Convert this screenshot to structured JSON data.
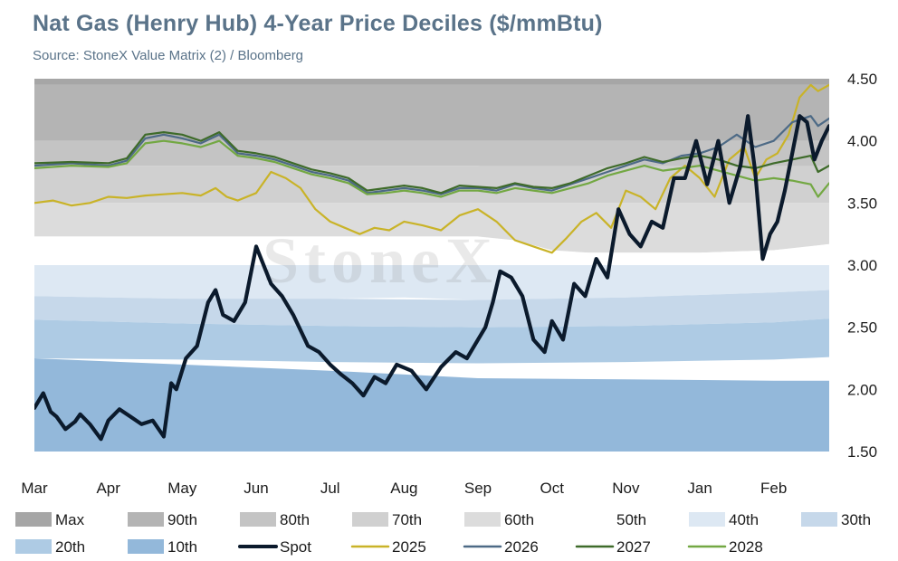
{
  "title": "Nat Gas (Henry Hub) 4-Year Price Deciles ($/mmBtu)",
  "subtitle": "Source: StoneX Value Matrix (2) / Bloomberg",
  "watermark": "StoneX",
  "chart_data": {
    "type": "area",
    "ylim": [
      1.5,
      4.5
    ],
    "yticks": [
      "1.50",
      "2.00",
      "2.50",
      "3.00",
      "3.50",
      "4.00",
      "4.50"
    ],
    "ytick_values": [
      1.5,
      2.0,
      2.5,
      3.0,
      3.5,
      4.0,
      4.5
    ],
    "months": [
      "Mar",
      "Apr",
      "May",
      "Jun",
      "Jul",
      "Aug",
      "Sep",
      "Oct",
      "Nov",
      "Jan",
      "Feb"
    ],
    "month_x": [
      0,
      1,
      2,
      3,
      4,
      5,
      6,
      7,
      8,
      9,
      10
    ],
    "xlim": [
      0,
      10.75
    ],
    "grid": false,
    "legend_placement": "bottom",
    "deciles": [
      {
        "name": "Max",
        "color": "#a6a6a6",
        "x": [
          0,
          10.75
        ],
        "lower": [
          4.45,
          4.45
        ],
        "upper": [
          4.5,
          4.5
        ]
      },
      {
        "name": "90th",
        "color": "#b4b4b4",
        "x": [
          0,
          10.75
        ],
        "lower": [
          4.0,
          4.0
        ],
        "upper": [
          4.45,
          4.45
        ]
      },
      {
        "name": "80th",
        "color": "#c4c4c4",
        "x": [
          0,
          1,
          2,
          3,
          4,
          5,
          6,
          6.5,
          7,
          7.5,
          8,
          9,
          10,
          10.75
        ],
        "lower": [
          3.8,
          3.8,
          3.8,
          3.8,
          3.8,
          3.8,
          3.8,
          3.75,
          3.62,
          3.55,
          3.53,
          3.55,
          3.6,
          3.62
        ],
        "upper": [
          4.0,
          4.0,
          4.0,
          4.0,
          4.0,
          4.0,
          4.0,
          4.0,
          4.0,
          4.0,
          4.0,
          4.0,
          4.0,
          4.0
        ]
      },
      {
        "name": "70th",
        "color": "#d0d0d0",
        "x": [
          0,
          10.75
        ],
        "lower": [
          3.5,
          3.5
        ],
        "upper": [
          3.8,
          3.8
        ]
      },
      {
        "name": "60th",
        "color": "#dcdcdc",
        "x": [
          0,
          5,
          6,
          6.5,
          7,
          7.5,
          8,
          9,
          10,
          10.5,
          10.75
        ],
        "lower": [
          3.23,
          3.23,
          3.23,
          3.2,
          3.12,
          3.1,
          3.1,
          3.1,
          3.12,
          3.15,
          3.17
        ],
        "upper": [
          3.5,
          3.5,
          3.5,
          3.5,
          3.5,
          3.5,
          3.5,
          3.5,
          3.5,
          3.5,
          3.5
        ]
      },
      {
        "name": "50th",
        "color": "#ffffff",
        "x": [
          0,
          1,
          2,
          3,
          4,
          5,
          6,
          7,
          8,
          9,
          10,
          10.75
        ],
        "lower": [
          3.0,
          3.0,
          3.0,
          3.0,
          3.0,
          3.0,
          3.0,
          3.0,
          3.0,
          3.0,
          3.0,
          3.0
        ],
        "upper": [
          3.23,
          3.23,
          3.23,
          3.23,
          3.23,
          3.23,
          3.23,
          3.1,
          3.1,
          3.1,
          3.12,
          3.17
        ]
      },
      {
        "name": "40th",
        "color": "#dde8f3",
        "x": [
          0,
          1,
          2,
          3,
          4,
          5,
          6,
          7,
          8,
          9,
          10,
          10.75
        ],
        "lower": [
          2.75,
          2.74,
          2.73,
          2.73,
          2.73,
          2.74,
          2.72,
          2.73,
          2.74,
          2.76,
          2.78,
          2.8
        ],
        "upper": [
          3.0,
          3.0,
          3.0,
          3.0,
          3.0,
          3.0,
          3.0,
          3.0,
          3.0,
          3.0,
          3.0,
          3.0
        ]
      },
      {
        "name": "30th",
        "color": "#c6d8ea",
        "x": [
          0,
          2,
          4,
          6,
          8,
          10,
          10.75
        ],
        "lower": [
          2.56,
          2.53,
          2.51,
          2.5,
          2.51,
          2.54,
          2.57
        ],
        "upper": [
          2.75,
          2.73,
          2.73,
          2.72,
          2.74,
          2.78,
          2.8
        ]
      },
      {
        "name": "20th",
        "color": "#aecbe4",
        "x": [
          0,
          2,
          4,
          6,
          8,
          10,
          10.75
        ],
        "lower": [
          2.25,
          2.24,
          2.22,
          2.21,
          2.22,
          2.24,
          2.26
        ],
        "upper": [
          2.56,
          2.53,
          2.51,
          2.5,
          2.51,
          2.54,
          2.57
        ]
      },
      {
        "name": "10th",
        "color": "#93b8da",
        "x": [
          0,
          2,
          4,
          6,
          8,
          10,
          10.75
        ],
        "lower": [
          1.5,
          1.5,
          1.5,
          1.5,
          1.5,
          1.5,
          1.5
        ],
        "upper": [
          2.25,
          2.2,
          2.15,
          2.09,
          2.08,
          2.07,
          2.07
        ]
      }
    ],
    "series": [
      {
        "name": "Spot",
        "color": "#0b1a2c",
        "width": 4.2,
        "x": [
          0,
          0.12,
          0.22,
          0.3,
          0.42,
          0.55,
          0.62,
          0.75,
          0.9,
          1.0,
          1.15,
          1.3,
          1.45,
          1.6,
          1.75,
          1.85,
          1.92,
          2.05,
          2.2,
          2.35,
          2.45,
          2.55,
          2.7,
          2.85,
          3.0,
          3.1,
          3.2,
          3.35,
          3.5,
          3.7,
          3.85,
          4.0,
          4.15,
          4.3,
          4.45,
          4.6,
          4.75,
          4.9,
          5.1,
          5.3,
          5.5,
          5.7,
          5.85,
          6.0,
          6.1,
          6.2,
          6.3,
          6.45,
          6.6,
          6.75,
          6.9,
          7.0,
          7.15,
          7.3,
          7.45,
          7.6,
          7.75,
          7.9,
          8.05,
          8.2,
          8.35,
          8.5,
          8.65,
          8.8,
          8.95,
          9.1,
          9.25,
          9.4,
          9.55,
          9.65,
          9.75,
          9.85,
          9.95,
          10.05,
          10.15,
          10.25,
          10.35,
          10.45,
          10.55,
          10.65,
          10.75
        ],
        "y": [
          1.85,
          1.97,
          1.82,
          1.78,
          1.68,
          1.74,
          1.8,
          1.72,
          1.6,
          1.75,
          1.84,
          1.78,
          1.72,
          1.75,
          1.62,
          2.05,
          2.0,
          2.25,
          2.35,
          2.7,
          2.8,
          2.6,
          2.55,
          2.7,
          3.15,
          3.0,
          2.85,
          2.75,
          2.6,
          2.35,
          2.3,
          2.2,
          2.12,
          2.05,
          1.95,
          2.1,
          2.05,
          2.2,
          2.15,
          2.0,
          2.18,
          2.3,
          2.25,
          2.4,
          2.5,
          2.7,
          2.95,
          2.9,
          2.75,
          2.4,
          2.3,
          2.55,
          2.4,
          2.85,
          2.75,
          3.05,
          2.9,
          3.45,
          3.25,
          3.15,
          3.35,
          3.3,
          3.7,
          3.7,
          4.0,
          3.65,
          4.0,
          3.5,
          3.8,
          4.2,
          3.75,
          3.05,
          3.25,
          3.35,
          3.6,
          3.9,
          4.2,
          4.15,
          3.85,
          4.0,
          4.12
        ]
      },
      {
        "name": "2025",
        "color": "#c9b328",
        "width": 2.2,
        "x": [
          0,
          0.25,
          0.5,
          0.75,
          1.0,
          1.25,
          1.5,
          1.75,
          2.0,
          2.25,
          2.45,
          2.6,
          2.75,
          3.0,
          3.2,
          3.4,
          3.6,
          3.8,
          4.0,
          4.2,
          4.4,
          4.6,
          4.8,
          5.0,
          5.25,
          5.5,
          5.75,
          6.0,
          6.25,
          6.5,
          6.75,
          7.0,
          7.2,
          7.4,
          7.6,
          7.8,
          8.0,
          8.2,
          8.4,
          8.6,
          8.8,
          9.0,
          9.2,
          9.4,
          9.6,
          9.75,
          9.9,
          10.05,
          10.2,
          10.35,
          10.5,
          10.6,
          10.75
        ],
        "y": [
          3.5,
          3.52,
          3.48,
          3.5,
          3.55,
          3.54,
          3.56,
          3.57,
          3.58,
          3.56,
          3.62,
          3.55,
          3.52,
          3.58,
          3.75,
          3.7,
          3.62,
          3.45,
          3.35,
          3.3,
          3.25,
          3.3,
          3.28,
          3.35,
          3.32,
          3.28,
          3.4,
          3.45,
          3.35,
          3.2,
          3.15,
          3.1,
          3.22,
          3.35,
          3.42,
          3.3,
          3.6,
          3.55,
          3.45,
          3.7,
          3.8,
          3.7,
          3.55,
          3.85,
          3.95,
          3.7,
          3.85,
          3.9,
          4.05,
          4.35,
          4.45,
          4.4,
          4.45
        ]
      },
      {
        "name": "2026",
        "color": "#4d6a86",
        "width": 2.2,
        "x": [
          0,
          0.5,
          1.0,
          1.25,
          1.5,
          1.75,
          2.0,
          2.25,
          2.5,
          2.75,
          3.0,
          3.25,
          3.5,
          3.75,
          4.0,
          4.25,
          4.5,
          4.75,
          5.0,
          5.25,
          5.5,
          5.75,
          6.0,
          6.25,
          6.5,
          6.75,
          7.0,
          7.25,
          7.5,
          7.75,
          8.0,
          8.25,
          8.5,
          8.75,
          9.0,
          9.25,
          9.5,
          9.75,
          10.0,
          10.25,
          10.5,
          10.6,
          10.75
        ],
        "y": [
          3.8,
          3.82,
          3.8,
          3.84,
          4.02,
          4.05,
          4.02,
          3.98,
          4.05,
          3.9,
          3.88,
          3.85,
          3.8,
          3.75,
          3.72,
          3.68,
          3.58,
          3.6,
          3.62,
          3.6,
          3.57,
          3.62,
          3.62,
          3.6,
          3.65,
          3.62,
          3.6,
          3.65,
          3.7,
          3.75,
          3.8,
          3.85,
          3.82,
          3.88,
          3.9,
          3.95,
          4.05,
          3.95,
          4.0,
          4.15,
          4.2,
          4.12,
          4.18
        ]
      },
      {
        "name": "2027",
        "color": "#3e6b2a",
        "width": 2.2,
        "x": [
          0,
          0.5,
          1.0,
          1.25,
          1.5,
          1.75,
          2.0,
          2.25,
          2.5,
          2.75,
          3.0,
          3.25,
          3.5,
          3.75,
          4.0,
          4.25,
          4.5,
          4.75,
          5.0,
          5.25,
          5.5,
          5.75,
          6.0,
          6.25,
          6.5,
          6.75,
          7.0,
          7.25,
          7.5,
          7.75,
          8.0,
          8.25,
          8.5,
          8.75,
          9.0,
          9.25,
          9.5,
          9.75,
          10.0,
          10.25,
          10.5,
          10.6,
          10.75
        ],
        "y": [
          3.82,
          3.83,
          3.82,
          3.86,
          4.05,
          4.07,
          4.05,
          4.0,
          4.07,
          3.92,
          3.9,
          3.87,
          3.82,
          3.77,
          3.74,
          3.7,
          3.6,
          3.62,
          3.64,
          3.62,
          3.58,
          3.64,
          3.63,
          3.62,
          3.66,
          3.63,
          3.62,
          3.66,
          3.72,
          3.78,
          3.82,
          3.87,
          3.83,
          3.86,
          3.88,
          3.85,
          3.8,
          3.78,
          3.82,
          3.85,
          3.88,
          3.75,
          3.8
        ]
      },
      {
        "name": "2028",
        "color": "#73a843",
        "width": 2.2,
        "x": [
          0,
          0.5,
          1.0,
          1.25,
          1.5,
          1.75,
          2.0,
          2.25,
          2.5,
          2.75,
          3.0,
          3.25,
          3.5,
          3.75,
          4.0,
          4.25,
          4.5,
          4.75,
          5.0,
          5.25,
          5.5,
          5.75,
          6.0,
          6.25,
          6.5,
          6.75,
          7.0,
          7.25,
          7.5,
          7.75,
          8.0,
          8.25,
          8.5,
          8.75,
          9.0,
          9.25,
          9.5,
          9.75,
          10.0,
          10.25,
          10.5,
          10.6,
          10.75
        ],
        "y": [
          3.78,
          3.8,
          3.79,
          3.82,
          3.98,
          4.0,
          3.98,
          3.95,
          4.0,
          3.88,
          3.86,
          3.83,
          3.78,
          3.73,
          3.7,
          3.66,
          3.57,
          3.58,
          3.6,
          3.58,
          3.55,
          3.6,
          3.6,
          3.58,
          3.62,
          3.6,
          3.58,
          3.62,
          3.66,
          3.72,
          3.76,
          3.8,
          3.76,
          3.78,
          3.8,
          3.76,
          3.72,
          3.68,
          3.7,
          3.68,
          3.65,
          3.55,
          3.66
        ]
      }
    ],
    "legend": [
      {
        "name": "Max",
        "kind": "patch",
        "color": "#a6a6a6"
      },
      {
        "name": "90th",
        "kind": "patch",
        "color": "#b4b4b4"
      },
      {
        "name": "80th",
        "kind": "patch",
        "color": "#c4c4c4"
      },
      {
        "name": "70th",
        "kind": "patch",
        "color": "#d0d0d0"
      },
      {
        "name": "60th",
        "kind": "patch",
        "color": "#dcdcdc"
      },
      {
        "name": "50th",
        "kind": "patch",
        "color": "#ffffff"
      },
      {
        "name": "40th",
        "kind": "patch",
        "color": "#dde8f3"
      },
      {
        "name": "30th",
        "kind": "patch",
        "color": "#c6d8ea"
      },
      {
        "name": "20th",
        "kind": "patch",
        "color": "#aecbe4"
      },
      {
        "name": "10th",
        "kind": "patch",
        "color": "#93b8da"
      },
      {
        "name": "Spot",
        "kind": "line",
        "color": "#0b1a2c"
      },
      {
        "name": "2025",
        "kind": "line",
        "color": "#c9b328"
      },
      {
        "name": "2026",
        "kind": "line",
        "color": "#4d6a86"
      },
      {
        "name": "2027",
        "kind": "line",
        "color": "#3e6b2a"
      },
      {
        "name": "2028",
        "kind": "line",
        "color": "#73a843"
      }
    ]
  }
}
